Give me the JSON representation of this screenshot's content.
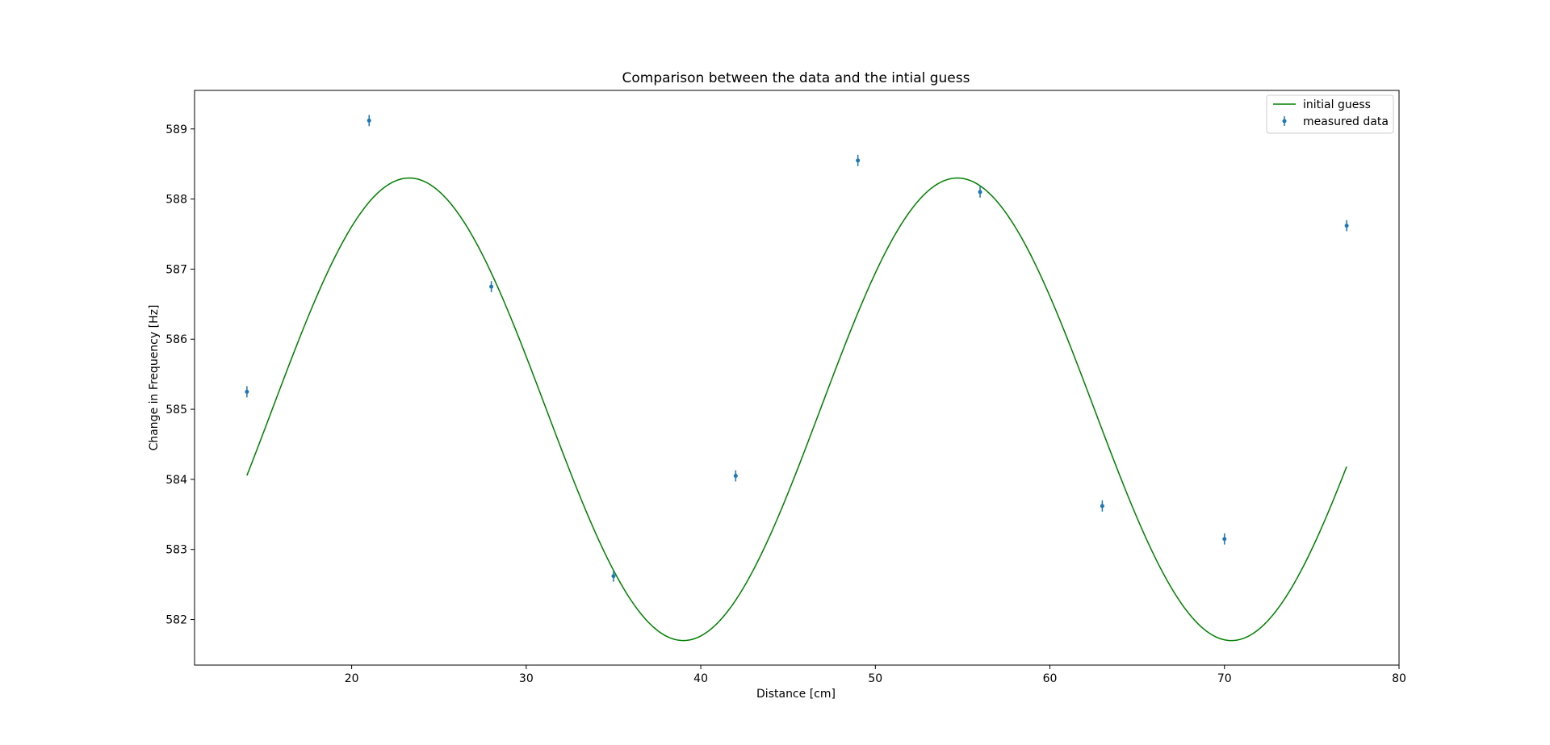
{
  "chart_data": {
    "type": "scatter",
    "title": "Comparison between the data and the intial guess",
    "xlabel": "Distance [cm]",
    "ylabel": "Change in Frequency [Hz]",
    "xlim": [
      11,
      80
    ],
    "ylim": [
      581.35,
      589.55
    ],
    "xticks": [
      20,
      30,
      40,
      50,
      60,
      70,
      80
    ],
    "yticks": [
      582,
      583,
      584,
      585,
      586,
      587,
      588,
      589
    ],
    "grid": false,
    "legend_position": "top-right",
    "series": [
      {
        "name": "initial guess",
        "kind": "line",
        "color": "#008000",
        "function": {
          "form": "offset + amplitude * sin(2*pi*(x - x0)/period)",
          "offset": 585.0,
          "amplitude": 3.3,
          "period": 31.4,
          "x0": 15.45
        },
        "x_range": [
          14,
          77
        ]
      },
      {
        "name": "measured data",
        "kind": "errorbar",
        "color": "#1f77b4",
        "x": [
          14,
          21,
          28,
          35,
          42,
          49,
          56,
          63,
          70,
          77
        ],
        "y": [
          585.25,
          589.12,
          586.75,
          582.62,
          584.05,
          588.55,
          588.1,
          583.62,
          583.15,
          587.62
        ],
        "yerr": [
          0.08,
          0.08,
          0.08,
          0.08,
          0.08,
          0.08,
          0.08,
          0.08,
          0.08,
          0.08
        ]
      }
    ]
  }
}
